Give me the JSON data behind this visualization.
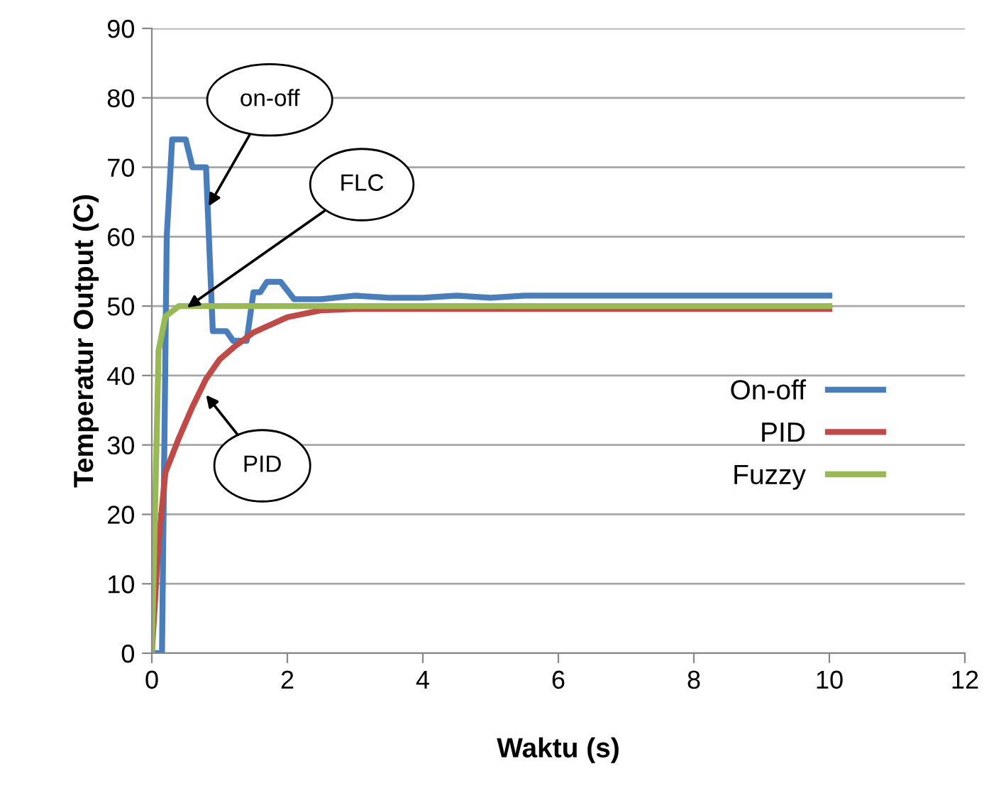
{
  "chart_data": {
    "type": "line",
    "xlabel": "Waktu (s)",
    "ylabel": "Temperatur Output (C)",
    "xlim": [
      0,
      12
    ],
    "xticks": [
      0,
      2,
      4,
      6,
      8,
      10,
      12
    ],
    "ylim": [
      0,
      90
    ],
    "yticks": [
      0,
      10,
      20,
      30,
      40,
      50,
      60,
      70,
      80,
      90
    ],
    "grid": "y",
    "legend": "right",
    "line_style": "solid",
    "marker": "none",
    "series": [
      {
        "name": "On-off",
        "color": "#4a7ebb",
        "x": [
          0,
          0.15,
          0.22,
          0.3,
          0.5,
          0.6,
          0.8,
          0.9,
          1.1,
          1.2,
          1.4,
          1.5,
          1.6,
          1.7,
          1.9,
          2.1,
          2.5,
          3,
          3.5,
          4,
          4.5,
          5,
          5.5,
          6,
          8,
          10
        ],
        "values": [
          0,
          0,
          60,
          74,
          74,
          70,
          70,
          46.4,
          46.4,
          45,
          45,
          52,
          52,
          53.5,
          53.5,
          51,
          51,
          51.5,
          51.2,
          51.2,
          51.5,
          51.2,
          51.5,
          51.5,
          51.5,
          51.5
        ]
      },
      {
        "name": "PID",
        "color": "#be4b48",
        "x": [
          0,
          0.1,
          0.2,
          0.4,
          0.6,
          0.8,
          1.0,
          1.2,
          1.5,
          2,
          2.5,
          3,
          4,
          6,
          8,
          10
        ],
        "values": [
          0,
          16,
          26,
          31,
          35.5,
          39.5,
          42.3,
          44,
          46.2,
          48.4,
          49.4,
          49.6,
          49.6,
          49.6,
          49.6,
          49.6
        ]
      },
      {
        "name": "Fuzzy",
        "color": "#98b954",
        "x": [
          0,
          0.1,
          0.2,
          0.4,
          1,
          2,
          4,
          6,
          8,
          10
        ],
        "values": [
          0,
          43.6,
          48.5,
          50,
          50,
          50,
          50,
          50,
          50,
          50
        ]
      }
    ],
    "annotations": [
      {
        "text": "on-off",
        "x": 0.84,
        "y": 64.4
      },
      {
        "text": "FLC",
        "x": 0.52,
        "y": 49.8
      },
      {
        "text": "PID",
        "x": 0.8,
        "y": 37.2
      }
    ]
  }
}
